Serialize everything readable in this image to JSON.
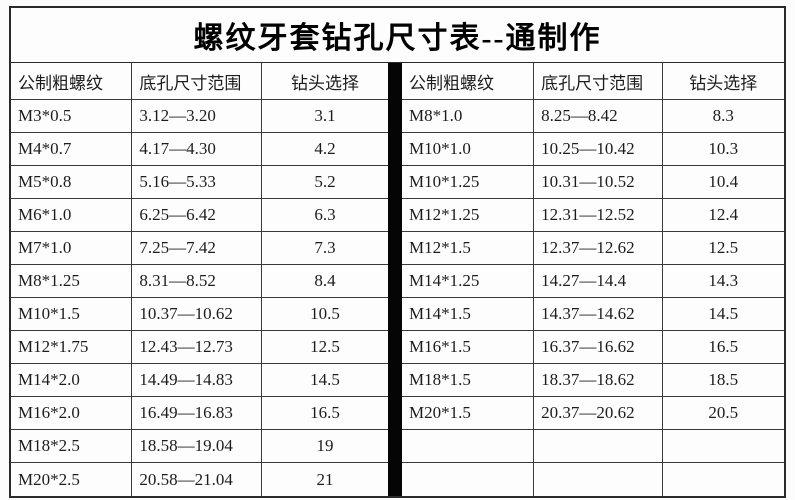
{
  "title": "螺纹牙套钻孔尺寸表--通制作",
  "columns": {
    "thread": "公制粗螺纹",
    "range": "底孔尺寸范围",
    "drill": "钻头选择"
  },
  "left_table": {
    "rows": [
      {
        "thread": "M3*0.5",
        "range": "3.12—3.20",
        "drill": "3.1"
      },
      {
        "thread": "M4*0.7",
        "range": "4.17—4.30",
        "drill": "4.2"
      },
      {
        "thread": "M5*0.8",
        "range": "5.16—5.33",
        "drill": "5.2"
      },
      {
        "thread": "M6*1.0",
        "range": "6.25—6.42",
        "drill": "6.3"
      },
      {
        "thread": "M7*1.0",
        "range": "7.25—7.42",
        "drill": "7.3"
      },
      {
        "thread": "M8*1.25",
        "range": "8.31—8.52",
        "drill": "8.4"
      },
      {
        "thread": "M10*1.5",
        "range": "10.37—10.62",
        "drill": "10.5"
      },
      {
        "thread": "M12*1.75",
        "range": "12.43—12.73",
        "drill": "12.5"
      },
      {
        "thread": "M14*2.0",
        "range": "14.49—14.83",
        "drill": "14.5"
      },
      {
        "thread": "M16*2.0",
        "range": "16.49—16.83",
        "drill": "16.5"
      },
      {
        "thread": "M18*2.5",
        "range": "18.58—19.04",
        "drill": "19"
      },
      {
        "thread": "M20*2.5",
        "range": "20.58—21.04",
        "drill": "21"
      }
    ]
  },
  "right_table": {
    "rows": [
      {
        "thread": "M8*1.0",
        "range": "8.25—8.42",
        "drill": "8.3"
      },
      {
        "thread": "M10*1.0",
        "range": "10.25—10.42",
        "drill": "10.3"
      },
      {
        "thread": "M10*1.25",
        "range": "10.31—10.52",
        "drill": "10.4"
      },
      {
        "thread": "M12*1.25",
        "range": "12.31—12.52",
        "drill": "12.4"
      },
      {
        "thread": "M12*1.5",
        "range": "12.37—12.62",
        "drill": "12.5"
      },
      {
        "thread": "M14*1.25",
        "range": "14.27—14.4",
        "drill": "14.3"
      },
      {
        "thread": "M14*1.5",
        "range": "14.37—14.62",
        "drill": "14.5"
      },
      {
        "thread": "M16*1.5",
        "range": "16.37—16.62",
        "drill": "16.5"
      },
      {
        "thread": "M18*1.5",
        "range": "18.37—18.62",
        "drill": "18.5"
      },
      {
        "thread": "M20*1.5",
        "range": "20.37—20.62",
        "drill": "20.5"
      },
      {
        "thread": "",
        "range": "",
        "drill": ""
      },
      {
        "thread": "",
        "range": "",
        "drill": ""
      }
    ]
  },
  "colors": {
    "background": "#fcfcfc",
    "frame_border": "#2a2a2a",
    "grid_line": "#3a3a3a",
    "divider_bar": "#050505",
    "text": "#1c1c1c"
  }
}
